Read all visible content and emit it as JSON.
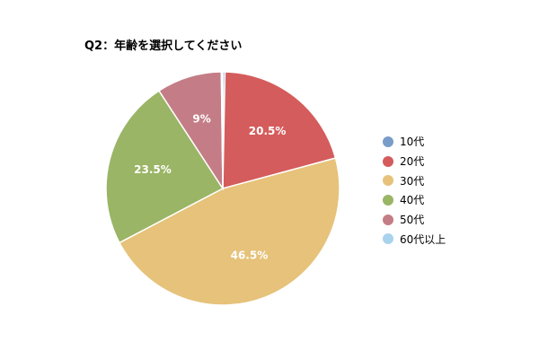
{
  "chart_data": {
    "type": "pie",
    "title": "Q2：年齢を選択してください",
    "categories": [
      "10代",
      "20代",
      "30代",
      "40代",
      "50代",
      "60代以上"
    ],
    "values": [
      0.3,
      20.5,
      46.5,
      23.5,
      9,
      0.2
    ],
    "data_labels": [
      "",
      "20.5%",
      "46.5%",
      "23.5%",
      "9%",
      ""
    ],
    "colors": [
      "#7a9cc8",
      "#d55c5c",
      "#e6c27a",
      "#9ab565",
      "#c47d86",
      "#a9d3ec"
    ],
    "legend_position": "right"
  }
}
